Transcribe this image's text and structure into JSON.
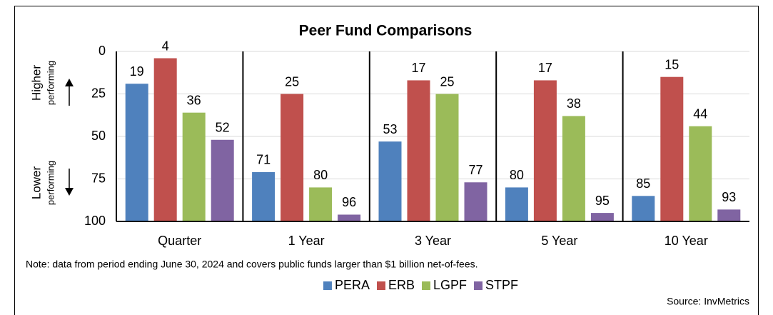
{
  "chart_data": {
    "type": "bar",
    "title": "Peer Fund Comparisons",
    "categories": [
      "Quarter",
      "1 Year",
      "3 Year",
      "5 Year",
      "10 Year"
    ],
    "series": [
      {
        "name": "PERA",
        "color": "#4f81bd",
        "values": [
          19,
          71,
          53,
          80,
          85
        ]
      },
      {
        "name": "ERB",
        "color": "#c0504d",
        "values": [
          4,
          25,
          17,
          17,
          15
        ]
      },
      {
        "name": "LGPF",
        "color": "#9bbb59",
        "values": [
          36,
          80,
          25,
          38,
          44
        ]
      },
      {
        "name": "STPF",
        "color": "#8064a2",
        "values": [
          52,
          96,
          77,
          95,
          93
        ]
      }
    ],
    "ylim": [
      100,
      0
    ],
    "yticks": [
      0,
      25,
      50,
      75,
      100
    ],
    "grid": true,
    "y_axis_labels": {
      "top": [
        "Higher",
        "performing"
      ],
      "bottom": [
        "Lower",
        "performing"
      ]
    },
    "note": "Note: data from period ending June 30, 2024 and covers public funds larger than $1 billion net-of-fees.",
    "source": "Source: InvMetrics",
    "legend": "bottom"
  }
}
